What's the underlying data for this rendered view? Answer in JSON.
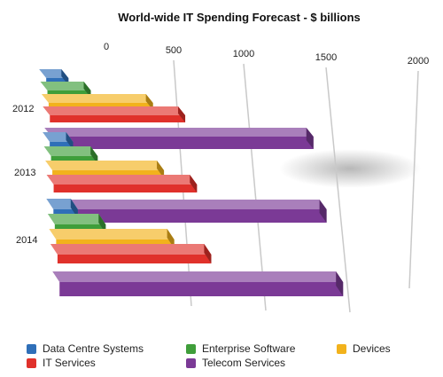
{
  "chart_data": {
    "type": "bar",
    "orientation": "horizontal",
    "style": "3d",
    "title": "World-wide IT Spending Forecast - $ billions",
    "xlabel": "",
    "ylabel": "",
    "xlim": [
      0,
      2000
    ],
    "x_ticks": [
      "0",
      "500",
      "1000",
      "1500",
      "2000"
    ],
    "categories": [
      "2012",
      "2013",
      "2014"
    ],
    "series": [
      {
        "name": "Data Centre Systems",
        "color": "#2f6fb8",
        "values": [
          141,
          147,
          152
        ]
      },
      {
        "name": "Enterprise Software",
        "color": "#3f9e3a",
        "values": [
          278,
          296,
          320
        ]
      },
      {
        "name": "Devices",
        "color": "#f2b21c",
        "values": [
          666,
          706,
          740
        ]
      },
      {
        "name": "IT Services",
        "color": "#e0312b",
        "values": [
          864,
          906,
          963
        ]
      },
      {
        "name": "Telecom Services",
        "color": "#7b3a96",
        "values": [
          1661,
          1703,
          1765
        ]
      }
    ],
    "grid": true,
    "legend_position": "bottom"
  }
}
